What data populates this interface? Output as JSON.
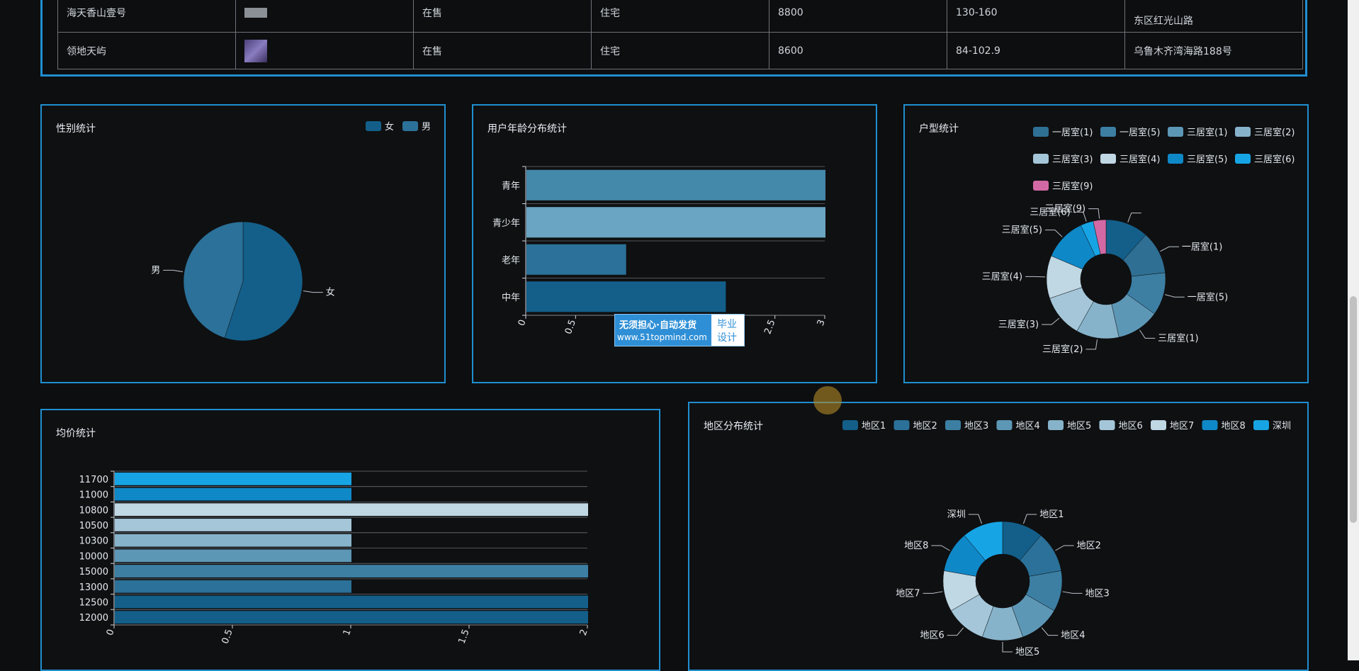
{
  "table": {
    "rows": [
      {
        "name": "海天香山壹号",
        "status": "在售",
        "type": "住宅",
        "price": "8800",
        "area": "130-160",
        "address": "东区红光山路"
      },
      {
        "name": "领地天屿",
        "status": "在售",
        "type": "住宅",
        "price": "8600",
        "area": "84-102.9",
        "address": "乌鲁木齐湾海路188号"
      }
    ]
  },
  "gender": {
    "title": "性别统计",
    "legend": [
      "女",
      "男"
    ],
    "colors": [
      "#135f8a",
      "#2b7199"
    ],
    "chart_data": {
      "type": "pie",
      "categories": [
        "女",
        "男"
      ],
      "values": [
        55,
        45
      ]
    }
  },
  "age": {
    "title": "用户年龄分布统计",
    "chart_data": {
      "type": "bar",
      "categories": [
        "中年",
        "老年",
        "青少年",
        "青年"
      ],
      "values": [
        2,
        1,
        3,
        3
      ],
      "xlim": [
        0,
        3
      ],
      "xticks": [
        "0",
        "0.5",
        "1",
        "1.5",
        "2",
        "2.5",
        "3"
      ],
      "colors": [
        "#135f8a",
        "#2b7199",
        "#6aa5c3",
        "#4488aa"
      ]
    }
  },
  "house": {
    "title": "户型统计",
    "legend": [
      "一居室(1)",
      "一居室(5)",
      "三居室(1)",
      "三居室(2)",
      "三居室(3)",
      "三居室(4)",
      "三居室(5)",
      "三居室(6)",
      "三居室(9)"
    ],
    "colors": [
      "#2f6f94",
      "#3c7fa3",
      "#5d97b6",
      "#86b3ca",
      "#a4c6d8",
      "#c0d7e4",
      "#0f88c8",
      "#17a4e4",
      "#d369a4"
    ],
    "chart_data": {
      "type": "pie",
      "categories": [
        "",
        "一居室(1)",
        "一居室(5)",
        "三居室(1)",
        "三居室(2)",
        "三居室(3)",
        "三居室(4)",
        "三居室(5)",
        "三居室(6)",
        "三居室(9)"
      ],
      "values": [
        1,
        1,
        1,
        1,
        1,
        1,
        1,
        1,
        0.3,
        0.3
      ]
    }
  },
  "avgprice": {
    "title": "均价统计",
    "chart_data": {
      "type": "bar",
      "categories": [
        "12000",
        "12500",
        "13000",
        "15000",
        "10000",
        "10300",
        "10500",
        "10800",
        "11000",
        "11700"
      ],
      "values": [
        2,
        2,
        1,
        2,
        1,
        1,
        1,
        2,
        1,
        1
      ],
      "xlim": [
        0,
        2
      ],
      "xticks": [
        "0",
        "0.5",
        "1",
        "1.5",
        "2"
      ],
      "colors": [
        "#135f8a",
        "#135f8a",
        "#2b7199",
        "#3c7fa3",
        "#5d97b6",
        "#86b3ca",
        "#a4c6d8",
        "#c0d7e4",
        "#0f88c8",
        "#17a4e4"
      ]
    }
  },
  "region": {
    "title": "地区分布统计",
    "legend": [
      "地区1",
      "地区2",
      "地区3",
      "地区4",
      "地区5",
      "地区6",
      "地区7",
      "地区8",
      "深圳"
    ],
    "colors": [
      "#135f8a",
      "#2b7199",
      "#3c7fa3",
      "#5d97b6",
      "#86b3ca",
      "#a4c6d8",
      "#c0d7e4",
      "#0f88c8",
      "#17a4e4"
    ],
    "chart_data": {
      "type": "pie",
      "categories": [
        "地区1",
        "地区2",
        "地区3",
        "地区4",
        "地区5",
        "地区6",
        "地区7",
        "地区8",
        "深圳"
      ],
      "values": [
        1,
        1,
        1,
        1,
        1,
        1,
        1,
        1,
        1
      ]
    }
  },
  "watermark": {
    "line1": "无须担心·自动发货",
    "line2": "www.51topmind.com",
    "line3": "毕业",
    "line4": "设计"
  }
}
